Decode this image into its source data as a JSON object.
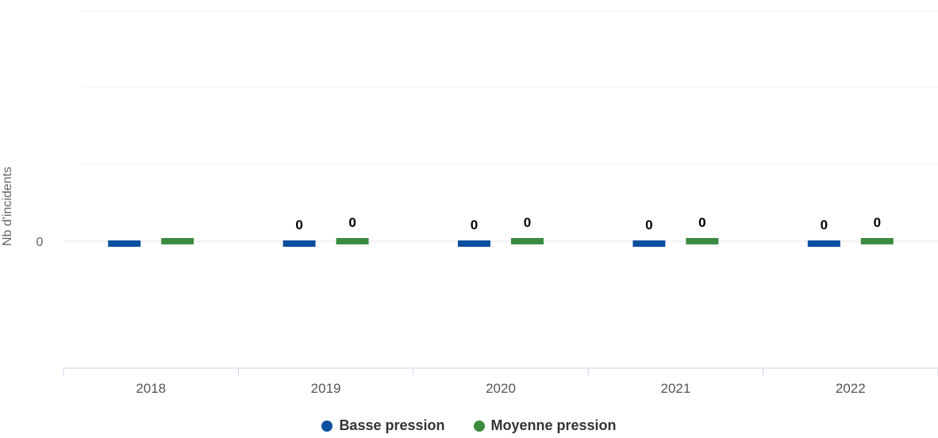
{
  "chart_data": {
    "type": "bar",
    "title": "",
    "xlabel": "",
    "ylabel": "Nb d'incidents",
    "categories": [
      "2018",
      "2019",
      "2020",
      "2021",
      "2022"
    ],
    "y_ticks": [
      "0"
    ],
    "series": [
      {
        "name": "Basse pression",
        "color": "#0b4f9e",
        "values": [
          0,
          0,
          0,
          0,
          0
        ],
        "labels": [
          "",
          "0",
          "0",
          "0",
          "0"
        ]
      },
      {
        "name": "Moyenne pression",
        "color": "#3a8a3f",
        "values": [
          0,
          0,
          0,
          0,
          0
        ],
        "labels": [
          "",
          "0",
          "0",
          "0",
          "0"
        ]
      }
    ],
    "grid": true,
    "legend_position": "bottom-center"
  }
}
